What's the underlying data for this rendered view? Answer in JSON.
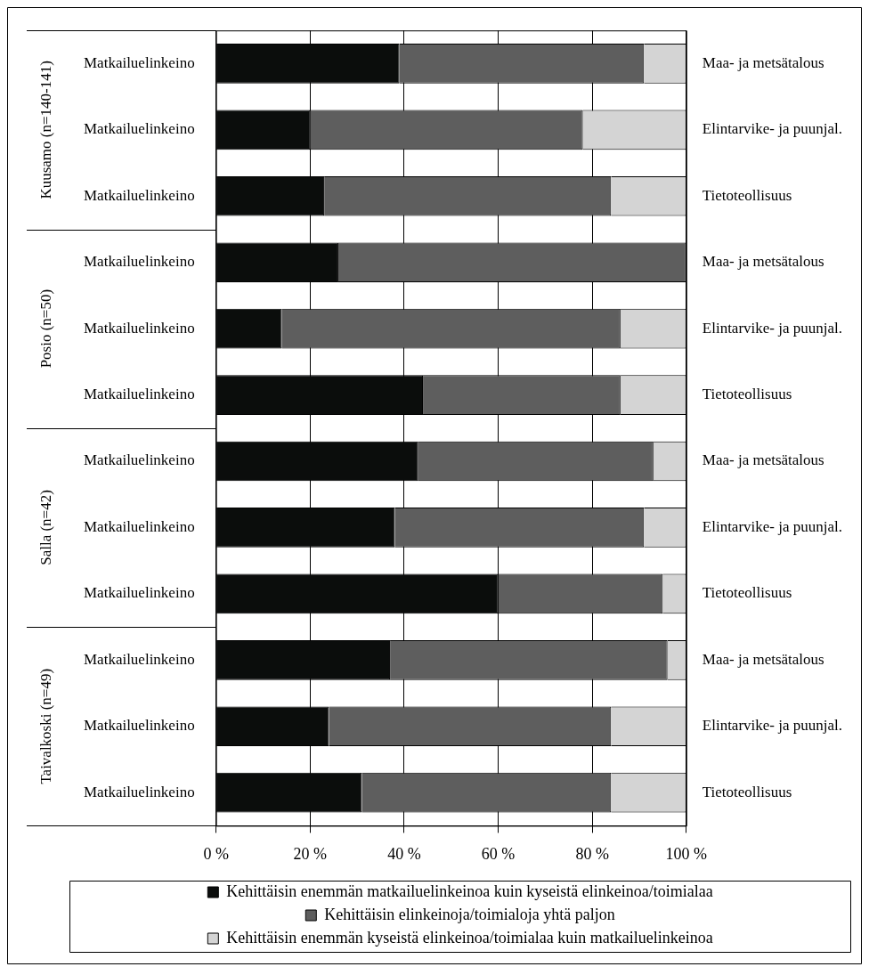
{
  "chart_data": {
    "type": "bar",
    "orientation": "horizontal",
    "stacked": true,
    "categories": [
      "Matkailuelinkeino",
      "Matkailuelinkeino",
      "Matkailuelinkeino",
      "Matkailuelinkeino",
      "Matkailuelinkeino",
      "Matkailuelinkeino",
      "Matkailuelinkeino",
      "Matkailuelinkeino",
      "Matkailuelinkeino",
      "Matkailuelinkeino",
      "Matkailuelinkeino",
      "Matkailuelinkeino"
    ],
    "y2_categories": [
      "Maa- ja metsätalous",
      "Elintarvike- ja puunjal.",
      "Tietoteollisuus",
      "Maa- ja metsätalous",
      "Elintarvike- ja puunjal.",
      "Tietoteollisuus",
      "Maa- ja metsätalous",
      "Elintarvike- ja puunjal.",
      "Tietoteollisuus",
      "Maa- ja metsätalous",
      "Elintarvike- ja puunjal.",
      "Tietoteollisuus"
    ],
    "series": [
      {
        "name": "Kehittäisin enemmän matkailuelinkeinoa kuin kyseistä elinkeinoa/toimialaa",
        "color": "#0b0d0c",
        "values": [
          39,
          20,
          23,
          26,
          14,
          44,
          43,
          38,
          60,
          37,
          24,
          31
        ]
      },
      {
        "name": "Kehittäisin elinkeinoja/toimialoja yhtä paljon",
        "color": "#5e5e5e",
        "values": [
          52,
          58,
          61,
          74,
          72,
          42,
          50,
          53,
          35,
          59,
          60,
          53
        ]
      },
      {
        "name": "Kehittäisin enemmän kyseistä elinkeinoa/toimialaa kuin matkailuelinkeinoa",
        "color": "#d4d4d4",
        "values": [
          9,
          22,
          16,
          0,
          14,
          14,
          7,
          9,
          5,
          4,
          16,
          16
        ]
      }
    ],
    "xlim": [
      0,
      100
    ],
    "xticks": [
      {
        "value": 0,
        "label": "0 %"
      },
      {
        "value": 20,
        "label": "20 %"
      },
      {
        "value": 40,
        "label": "40 %"
      },
      {
        "value": 60,
        "label": "60 %"
      },
      {
        "value": 80,
        "label": "80 %"
      },
      {
        "value": 100,
        "label": "100 %"
      }
    ],
    "grid": "x",
    "legend": "bottom",
    "annotations": [
      "Kuusamo (n=140-141)",
      "Posio (n=50)",
      "Salla (n=42)",
      "Taivalkoski (n=49)"
    ]
  }
}
